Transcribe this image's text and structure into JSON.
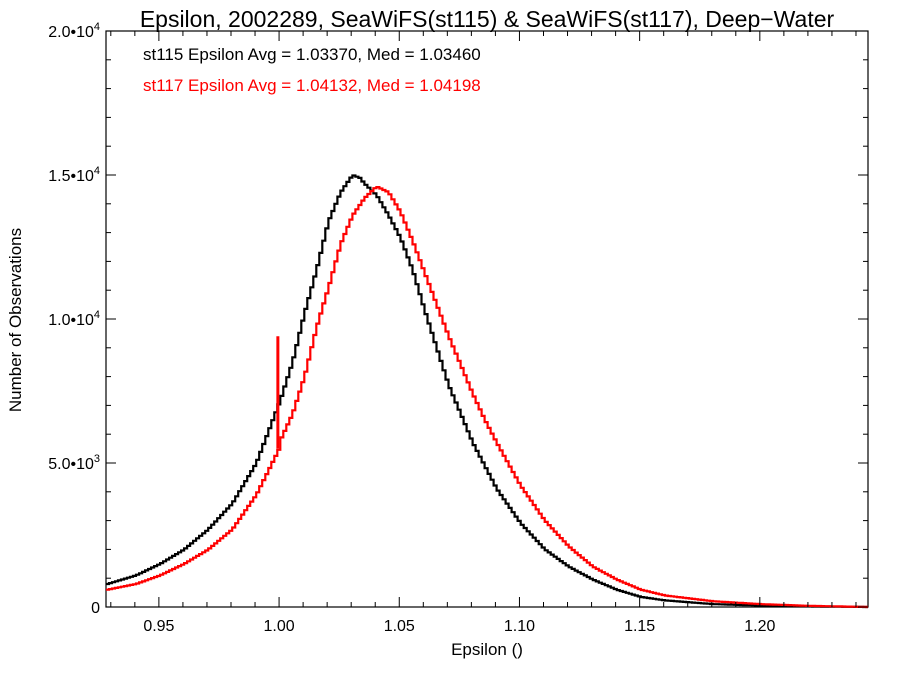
{
  "chart_data": {
    "type": "line",
    "title": "Epsilon, 2002289, SeaWiFS(st115) & SeaWiFS(st117), Deep−Water",
    "xlabel": "Epsilon ()",
    "ylabel": "Number of Observations",
    "xlim": [
      0.928,
      1.245
    ],
    "ylim": [
      0,
      20000
    ],
    "grid": false,
    "x_ticks": [
      {
        "value": 0.95,
        "label": "0.95"
      },
      {
        "value": 1.0,
        "label": "1.00"
      },
      {
        "value": 1.05,
        "label": "1.05"
      },
      {
        "value": 1.1,
        "label": "1.10"
      },
      {
        "value": 1.15,
        "label": "1.15"
      },
      {
        "value": 1.2,
        "label": "1.20"
      }
    ],
    "y_ticks": [
      {
        "value": 0,
        "label": "0",
        "exp": ""
      },
      {
        "value": 5000,
        "label": "5.0•10",
        "exp": "3"
      },
      {
        "value": 10000,
        "label": "1.0•10",
        "exp": "4"
      },
      {
        "value": 15000,
        "label": "1.5•10",
        "exp": "4"
      },
      {
        "value": 20000,
        "label": "2.0•10",
        "exp": "4"
      }
    ],
    "annotations": [
      {
        "text": "st115 Epsilon Avg = 1.03370, Med = 1.03460",
        "color": "#000000"
      },
      {
        "text": "st117 Epsilon Avg = 1.04132, Med = 1.04198",
        "color": "#ff0000"
      }
    ],
    "series": [
      {
        "color": "#000000",
        "x": [
          0.928,
          0.94,
          0.95,
          0.96,
          0.97,
          0.98,
          0.99,
          1.0,
          1.005,
          1.01,
          1.015,
          1.02,
          1.025,
          1.03,
          1.033,
          1.035,
          1.04,
          1.045,
          1.05,
          1.055,
          1.06,
          1.065,
          1.07,
          1.075,
          1.08,
          1.09,
          1.1,
          1.11,
          1.12,
          1.13,
          1.14,
          1.15,
          1.16,
          1.18,
          1.2,
          1.22,
          1.245
        ],
        "y": [
          800,
          1100,
          1500,
          2000,
          2700,
          3600,
          5000,
          7200,
          8500,
          10200,
          11700,
          13400,
          14400,
          15000,
          14900,
          14700,
          14300,
          13600,
          12800,
          11700,
          10300,
          9000,
          7700,
          6700,
          5700,
          4100,
          2900,
          2000,
          1400,
          950,
          600,
          350,
          230,
          100,
          50,
          20,
          0
        ]
      },
      {
        "color": "#ff0000",
        "x": [
          0.928,
          0.94,
          0.95,
          0.96,
          0.97,
          0.98,
          0.99,
          0.9995,
          0.9995,
          1.0,
          1.005,
          1.01,
          1.015,
          1.02,
          1.025,
          1.03,
          1.035,
          1.04,
          1.045,
          1.05,
          1.055,
          1.06,
          1.065,
          1.07,
          1.075,
          1.08,
          1.085,
          1.09,
          1.1,
          1.11,
          1.12,
          1.13,
          1.14,
          1.15,
          1.16,
          1.18,
          1.2,
          1.22,
          1.245
        ],
        "y": [
          600,
          800,
          1100,
          1500,
          2000,
          2700,
          3900,
          5500,
          9400,
          5800,
          6700,
          8000,
          9700,
          11100,
          12600,
          13600,
          14200,
          14600,
          14400,
          13700,
          12700,
          11600,
          10500,
          9400,
          8400,
          7400,
          6500,
          5700,
          4200,
          3000,
          2100,
          1400,
          950,
          600,
          400,
          200,
          100,
          40,
          0
        ]
      }
    ]
  }
}
